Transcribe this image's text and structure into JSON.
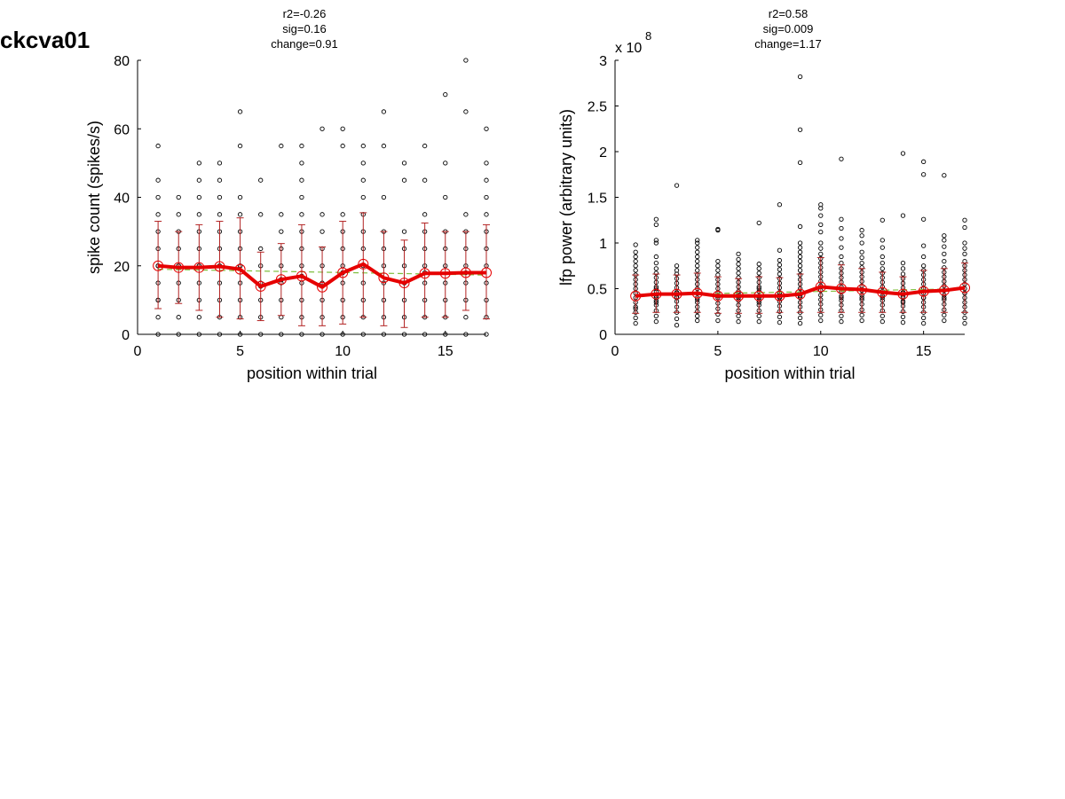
{
  "page": {
    "title": "ckcva01"
  },
  "chart_data": [
    {
      "type": "scatter",
      "stats": [
        "r2=-0.26",
        "sig=0.16",
        "change=0.91"
      ],
      "xlabel": "position within trial",
      "ylabel": "spike count (spikes/s)",
      "xlim": [
        0,
        17
      ],
      "ylim": [
        0,
        80
      ],
      "xticks": [
        0,
        5,
        10,
        15
      ],
      "yticks": [
        0,
        20,
        40,
        60,
        80
      ],
      "exponent_label": "",
      "colors": {
        "points": "#000000",
        "mean": "#e60000",
        "errorbar": "#b22222",
        "fit": "#7fbf3f"
      },
      "points": {
        "x": [
          1,
          1,
          1,
          1,
          1,
          1,
          1,
          1,
          1,
          1,
          1,
          1,
          1,
          2,
          2,
          2,
          2,
          2,
          2,
          2,
          2,
          2,
          2,
          3,
          3,
          3,
          3,
          3,
          3,
          3,
          3,
          3,
          3,
          3,
          3,
          4,
          4,
          4,
          4,
          4,
          4,
          4,
          4,
          4,
          4,
          4,
          4,
          5,
          5,
          5,
          5,
          5,
          5,
          5,
          5,
          5,
          5,
          5,
          5,
          6,
          6,
          6,
          6,
          6,
          6,
          6,
          6,
          6,
          7,
          7,
          7,
          7,
          7,
          7,
          7,
          7,
          7,
          7,
          7,
          8,
          8,
          8,
          8,
          8,
          8,
          8,
          8,
          8,
          8,
          8,
          8,
          8,
          9,
          9,
          9,
          9,
          9,
          9,
          9,
          9,
          9,
          9,
          9,
          10,
          10,
          10,
          10,
          10,
          10,
          10,
          10,
          10,
          10,
          10,
          10,
          11,
          11,
          11,
          11,
          11,
          11,
          11,
          11,
          11,
          11,
          11,
          11,
          12,
          12,
          12,
          12,
          12,
          12,
          12,
          12,
          12,
          12,
          13,
          13,
          13,
          13,
          13,
          13,
          13,
          13,
          13,
          13,
          14,
          14,
          14,
          14,
          14,
          14,
          14,
          14,
          14,
          14,
          14,
          15,
          15,
          15,
          15,
          15,
          15,
          15,
          15,
          15,
          15,
          16,
          16,
          16,
          16,
          16,
          16,
          16,
          16,
          16,
          16,
          16,
          17,
          17,
          17,
          17,
          17,
          17,
          17,
          17,
          17,
          17,
          17,
          17
        ],
        "y": [
          0,
          5,
          10,
          15,
          20,
          25,
          30,
          35,
          40,
          45,
          55,
          10,
          20,
          0,
          5,
          10,
          15,
          20,
          25,
          30,
          35,
          40,
          20,
          0,
          5,
          10,
          15,
          20,
          25,
          30,
          35,
          40,
          45,
          50,
          20,
          0,
          5,
          10,
          15,
          20,
          25,
          30,
          35,
          40,
          45,
          50,
          20,
          0,
          5,
          10,
          15,
          20,
          25,
          30,
          35,
          40,
          55,
          65,
          20,
          0,
          5,
          10,
          15,
          20,
          25,
          35,
          45,
          14,
          0,
          5,
          10,
          15,
          20,
          25,
          30,
          35,
          55,
          16,
          16,
          0,
          5,
          10,
          15,
          20,
          25,
          30,
          35,
          40,
          45,
          50,
          55,
          17,
          0,
          5,
          10,
          15,
          20,
          25,
          30,
          35,
          60,
          14,
          14,
          0,
          5,
          10,
          15,
          20,
          25,
          30,
          35,
          55,
          60,
          18,
          18,
          0,
          5,
          10,
          15,
          20,
          25,
          30,
          35,
          40,
          45,
          50,
          55,
          0,
          5,
          10,
          15,
          20,
          25,
          30,
          40,
          55,
          65,
          0,
          5,
          10,
          15,
          20,
          25,
          30,
          45,
          50,
          15,
          0,
          5,
          10,
          15,
          20,
          25,
          30,
          35,
          45,
          55,
          18,
          0,
          5,
          10,
          15,
          20,
          25,
          30,
          40,
          50,
          70,
          0,
          5,
          10,
          15,
          20,
          25,
          30,
          35,
          65,
          80,
          18,
          0,
          5,
          10,
          15,
          20,
          25,
          30,
          35,
          40,
          45,
          50,
          60
        ]
      },
      "mean": {
        "x": [
          1,
          2,
          3,
          4,
          5,
          6,
          7,
          8,
          9,
          10,
          11,
          12,
          13,
          14,
          15,
          16,
          17
        ],
        "y": [
          20,
          19.5,
          19.5,
          19.8,
          19,
          14,
          16,
          17,
          13.8,
          18,
          20.5,
          16.5,
          15,
          17.8,
          17.8,
          18,
          18
        ]
      },
      "errorbars": {
        "x": [
          1,
          2,
          3,
          4,
          5,
          6,
          7,
          8,
          9,
          10,
          11,
          12,
          13,
          14,
          15,
          16,
          17
        ],
        "lower": [
          7.5,
          9,
          7,
          5,
          4.5,
          4,
          5.5,
          2.5,
          2.5,
          3,
          5,
          2.5,
          2,
          5,
          5,
          7,
          4.5
        ],
        "upper": [
          33,
          30,
          32,
          33,
          34,
          24,
          26.5,
          32,
          25.5,
          33,
          35.5,
          30,
          27.5,
          32.5,
          30,
          30,
          32
        ]
      },
      "fit": {
        "x": [
          1,
          17
        ],
        "y": [
          19,
          17.3
        ]
      }
    },
    {
      "type": "scatter",
      "stats": [
        "r2=0.58",
        "sig=0.009",
        "change=1.17"
      ],
      "xlabel": "position within trial",
      "ylabel": "lfp power (arbitrary units)",
      "xlim": [
        0,
        17
      ],
      "ylim": [
        0,
        3
      ],
      "xticks": [
        0,
        5,
        10,
        15
      ],
      "yticks": [
        0,
        0.5,
        1,
        1.5,
        2,
        2.5,
        3
      ],
      "ytick_labels": [
        "0",
        "0.5",
        "1",
        "1.5",
        "2",
        "2.5",
        "3"
      ],
      "exponent_label": [
        "x 10",
        "8"
      ],
      "colors": {
        "points": "#000000",
        "mean": "#e60000",
        "errorbar": "#b22222",
        "fit": "#7fbf3f"
      },
      "points": {
        "x": [
          1,
          1,
          1,
          1,
          1,
          1,
          1,
          1,
          1,
          1,
          1,
          1,
          1,
          1,
          1,
          1,
          1,
          1,
          2,
          2,
          2,
          2,
          2,
          2,
          2,
          2,
          2,
          2,
          2,
          2,
          2,
          2,
          2,
          2,
          2,
          2,
          2,
          2,
          2,
          3,
          3,
          3,
          3,
          3,
          3,
          3,
          3,
          3,
          3,
          3,
          3,
          3,
          3,
          3,
          3,
          4,
          4,
          4,
          4,
          4,
          4,
          4,
          4,
          4,
          4,
          4,
          4,
          4,
          4,
          4,
          4,
          4,
          4,
          4,
          4,
          5,
          5,
          5,
          5,
          5,
          5,
          5,
          5,
          5,
          5,
          5,
          5,
          5,
          5,
          5,
          5,
          6,
          6,
          6,
          6,
          6,
          6,
          6,
          6,
          6,
          6,
          6,
          6,
          6,
          6,
          6,
          6,
          6,
          7,
          7,
          7,
          7,
          7,
          7,
          7,
          7,
          7,
          7,
          7,
          7,
          7,
          7,
          7,
          7,
          7,
          8,
          8,
          8,
          8,
          8,
          8,
          8,
          8,
          8,
          8,
          8,
          8,
          8,
          8,
          8,
          8,
          8,
          8,
          9,
          9,
          9,
          9,
          9,
          9,
          9,
          9,
          9,
          9,
          9,
          9,
          9,
          9,
          9,
          9,
          9,
          9,
          9,
          9,
          9,
          9,
          9,
          10,
          10,
          10,
          10,
          10,
          10,
          10,
          10,
          10,
          10,
          10,
          10,
          10,
          10,
          10,
          10,
          10,
          10,
          10,
          10,
          10,
          10,
          11,
          11,
          11,
          11,
          11,
          11,
          11,
          11,
          11,
          11,
          11,
          11,
          11,
          11,
          11,
          11,
          11,
          11,
          11,
          11,
          12,
          12,
          12,
          12,
          12,
          12,
          12,
          12,
          12,
          12,
          12,
          12,
          12,
          12,
          12,
          12,
          12,
          12,
          12,
          13,
          13,
          13,
          13,
          13,
          13,
          13,
          13,
          13,
          13,
          13,
          13,
          13,
          13,
          13,
          13,
          13,
          13,
          14,
          14,
          14,
          14,
          14,
          14,
          14,
          14,
          14,
          14,
          14,
          14,
          14,
          14,
          14,
          14,
          14,
          14,
          15,
          15,
          15,
          15,
          15,
          15,
          15,
          15,
          15,
          15,
          15,
          15,
          15,
          15,
          15,
          15,
          15,
          15,
          15,
          16,
          16,
          16,
          16,
          16,
          16,
          16,
          16,
          16,
          16,
          16,
          16,
          16,
          16,
          16,
          16,
          16,
          16,
          16,
          17,
          17,
          17,
          17,
          17,
          17,
          17,
          17,
          17,
          17,
          17,
          17,
          17,
          17,
          17,
          17,
          17,
          17,
          17,
          17
        ],
        "y": [
          0.12,
          0.18,
          0.24,
          0.3,
          0.35,
          0.4,
          0.45,
          0.5,
          0.55,
          0.6,
          0.65,
          0.7,
          0.75,
          0.8,
          0.85,
          0.9,
          0.98,
          0.28,
          0.14,
          0.2,
          0.26,
          0.32,
          0.37,
          0.42,
          0.47,
          0.52,
          0.57,
          0.62,
          0.67,
          0.72,
          0.78,
          0.85,
          1.0,
          1.03,
          1.2,
          1.26,
          0.4,
          0.5,
          0.35,
          0.1,
          0.17,
          0.24,
          0.3,
          0.36,
          0.41,
          0.46,
          0.51,
          0.56,
          0.61,
          0.66,
          0.7,
          0.75,
          1.63,
          0.4,
          0.45,
          0.15,
          0.2,
          0.25,
          0.3,
          0.35,
          0.4,
          0.45,
          0.5,
          0.55,
          0.6,
          0.65,
          0.7,
          0.75,
          0.8,
          0.85,
          0.9,
          0.95,
          1.0,
          1.03,
          0.38,
          0.15,
          0.22,
          0.28,
          0.34,
          0.4,
          0.45,
          0.5,
          0.55,
          0.6,
          0.65,
          0.7,
          0.75,
          0.8,
          1.14,
          1.15,
          0.42,
          0.14,
          0.2,
          0.26,
          0.32,
          0.37,
          0.42,
          0.47,
          0.52,
          0.57,
          0.62,
          0.67,
          0.72,
          0.77,
          0.82,
          0.88,
          0.4,
          0.45,
          0.14,
          0.2,
          0.26,
          0.32,
          0.37,
          0.42,
          0.47,
          0.52,
          0.57,
          0.62,
          0.67,
          0.72,
          0.77,
          1.22,
          0.4,
          0.5,
          0.35,
          0.13,
          0.19,
          0.25,
          0.31,
          0.36,
          0.41,
          0.46,
          0.51,
          0.56,
          0.61,
          0.66,
          0.71,
          0.76,
          0.81,
          0.92,
          1.42,
          0.4,
          0.45,
          0.12,
          0.18,
          0.24,
          0.3,
          0.35,
          0.4,
          0.45,
          0.5,
          0.55,
          0.6,
          0.65,
          0.7,
          0.75,
          0.8,
          0.85,
          0.9,
          0.95,
          1.0,
          1.18,
          1.88,
          2.24,
          2.82,
          0.42,
          0.15,
          0.21,
          0.27,
          0.33,
          0.38,
          0.43,
          0.48,
          0.53,
          0.58,
          0.63,
          0.68,
          0.73,
          0.78,
          0.83,
          0.88,
          0.94,
          1.0,
          1.12,
          1.2,
          1.3,
          1.38,
          1.42,
          0.14,
          0.2,
          0.26,
          0.32,
          0.37,
          0.42,
          0.47,
          0.52,
          0.57,
          0.62,
          0.67,
          0.72,
          0.78,
          0.85,
          0.95,
          1.05,
          1.16,
          1.26,
          1.92,
          0.4,
          0.15,
          0.21,
          0.27,
          0.33,
          0.38,
          0.43,
          0.48,
          0.53,
          0.58,
          0.63,
          0.68,
          0.73,
          0.78,
          0.84,
          0.9,
          1.0,
          1.08,
          1.14,
          0.4,
          0.14,
          0.2,
          0.26,
          0.32,
          0.37,
          0.42,
          0.47,
          0.52,
          0.57,
          0.62,
          0.67,
          0.72,
          0.78,
          0.85,
          0.95,
          1.03,
          1.25,
          0.4,
          0.13,
          0.19,
          0.25,
          0.31,
          0.36,
          0.41,
          0.46,
          0.51,
          0.56,
          0.61,
          0.66,
          0.72,
          0.78,
          1.3,
          1.98,
          0.4,
          0.45,
          0.35,
          0.12,
          0.18,
          0.24,
          0.3,
          0.35,
          0.4,
          0.45,
          0.5,
          0.55,
          0.6,
          0.65,
          0.7,
          0.75,
          0.85,
          0.97,
          1.26,
          1.75,
          1.89,
          0.4,
          0.15,
          0.21,
          0.27,
          0.33,
          0.38,
          0.43,
          0.48,
          0.53,
          0.58,
          0.63,
          0.68,
          0.73,
          0.8,
          0.88,
          0.96,
          1.03,
          1.08,
          1.74,
          0.4,
          0.12,
          0.18,
          0.24,
          0.3,
          0.35,
          0.4,
          0.45,
          0.5,
          0.55,
          0.6,
          0.65,
          0.7,
          0.75,
          0.8,
          0.88,
          0.94,
          1.0,
          1.17,
          1.25,
          0.45
        ]
      },
      "mean": {
        "x": [
          1,
          2,
          3,
          4,
          5,
          6,
          7,
          8,
          9,
          10,
          11,
          12,
          13,
          14,
          15,
          16,
          17
        ],
        "y": [
          0.42,
          0.44,
          0.44,
          0.45,
          0.42,
          0.42,
          0.42,
          0.42,
          0.44,
          0.52,
          0.5,
          0.49,
          0.46,
          0.44,
          0.47,
          0.48,
          0.51
        ]
      },
      "errorbars": {
        "x": [
          1,
          2,
          3,
          4,
          5,
          6,
          7,
          8,
          9,
          10,
          11,
          12,
          13,
          14,
          15,
          16,
          17
        ],
        "lower": [
          0.23,
          0.24,
          0.24,
          0.24,
          0.23,
          0.23,
          0.23,
          0.24,
          0.24,
          0.24,
          0.24,
          0.24,
          0.24,
          0.24,
          0.24,
          0.24,
          0.24
        ],
        "upper": [
          0.65,
          0.66,
          0.65,
          0.67,
          0.63,
          0.61,
          0.63,
          0.62,
          0.66,
          0.84,
          0.76,
          0.72,
          0.68,
          0.63,
          0.7,
          0.72,
          0.78
        ]
      },
      "fit": {
        "x": [
          1,
          17
        ],
        "y": [
          0.43,
          0.5
        ]
      }
    }
  ]
}
